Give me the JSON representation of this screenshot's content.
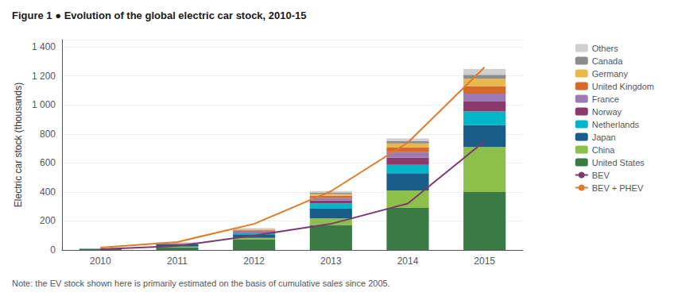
{
  "chart_data": {
    "type": "bar",
    "title": "Figure 1 ● Evolution of the global electric car stock, 2010-15",
    "annotations": [
      "Note: the EV stock shown here is primarily estimated on the basis of cumulative sales since 2005."
    ],
    "ylabel": "Electric car stock (thousands)",
    "categories": [
      "2010",
      "2011",
      "2012",
      "2013",
      "2014",
      "2015"
    ],
    "stacked": true,
    "grid": true,
    "legend": "right",
    "ylim": [
      0,
      1450
    ],
    "yticks": [
      0,
      200,
      400,
      600,
      800,
      {
        "value": 1000,
        "label": "1 000"
      },
      {
        "value": 1200,
        "label": "1 200"
      },
      {
        "value": 1400,
        "label": "1 400"
      }
    ],
    "series": [
      {
        "name": "United States",
        "type": "bar",
        "color": "#3a7a45",
        "values": [
          5,
          18,
          71,
          172,
          290,
          400
        ]
      },
      {
        "name": "China",
        "type": "bar",
        "color": "#8cc04a",
        "values": [
          1,
          5,
          12,
          45,
          120,
          310
        ]
      },
      {
        "name": "Japan",
        "type": "bar",
        "color": "#1a5c8a",
        "values": [
          2,
          15,
          25,
          68,
          120,
          150
        ]
      },
      {
        "name": "Netherlands",
        "type": "bar",
        "color": "#00b5c8",
        "values": [
          0,
          2,
          9,
          37,
          57,
          95
        ]
      },
      {
        "name": "Norway",
        "type": "bar",
        "color": "#8b3a6b",
        "values": [
          1,
          3,
          8,
          20,
          50,
          68
        ]
      },
      {
        "name": "France",
        "type": "bar",
        "color": "#9b7bb5",
        "values": [
          1,
          3,
          8,
          18,
          37,
          55
        ]
      },
      {
        "name": "United Kingdom",
        "type": "bar",
        "color": "#d4692a",
        "values": [
          0,
          2,
          5,
          14,
          35,
          52
        ]
      },
      {
        "name": "Germany",
        "type": "bar",
        "color": "#e8b84b",
        "values": [
          0,
          2,
          4,
          12,
          25,
          50
        ]
      },
      {
        "name": "Canada",
        "type": "bar",
        "color": "#8c8c8c",
        "values": [
          0,
          1,
          3,
          8,
          15,
          28
        ]
      },
      {
        "name": "Others",
        "type": "bar",
        "color": "#d0cece",
        "values": [
          1,
          2,
          5,
          12,
          20,
          40
        ]
      },
      {
        "name": "BEV",
        "type": "line",
        "color": "#7b3a6e",
        "values": [
          5,
          28,
          100,
          180,
          320,
          750
        ]
      },
      {
        "name": "BEV + PHEV",
        "type": "line",
        "color": "#e07b2a",
        "values": [
          17,
          55,
          180,
          405,
          740,
          1260
        ]
      }
    ]
  }
}
